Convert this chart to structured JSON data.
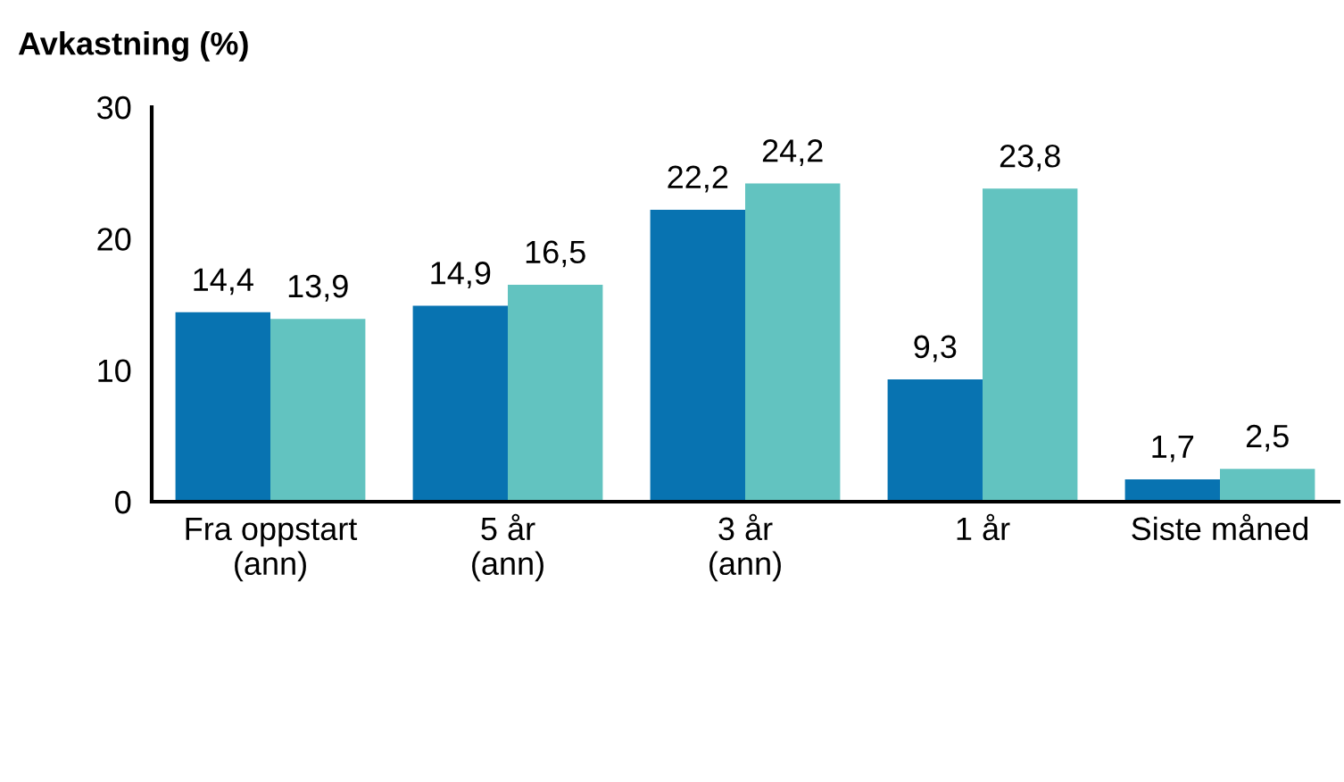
{
  "chart_data": {
    "type": "bar",
    "title": "Avkastning (%)",
    "categories": [
      "Fra oppstart\n(ann)",
      "5 år\n(ann)",
      "3 år\n(ann)",
      "1 år",
      "Siste måned"
    ],
    "series": [
      {
        "color": "#0873b1",
        "values": [
          14.4,
          14.9,
          22.2,
          9.3,
          1.7
        ],
        "value_labels": [
          "14,4",
          "14,9",
          "22,2",
          "9,3",
          "1,7"
        ]
      },
      {
        "color": "#62c3c0",
        "values": [
          13.9,
          16.5,
          24.2,
          23.8,
          2.5
        ],
        "value_labels": [
          "13,9",
          "16,5",
          "24,2",
          "23,8",
          "2,5"
        ]
      }
    ],
    "ylim": [
      0,
      30
    ],
    "yticks": [
      0,
      10,
      20,
      30
    ],
    "grid": false,
    "legend": false
  }
}
